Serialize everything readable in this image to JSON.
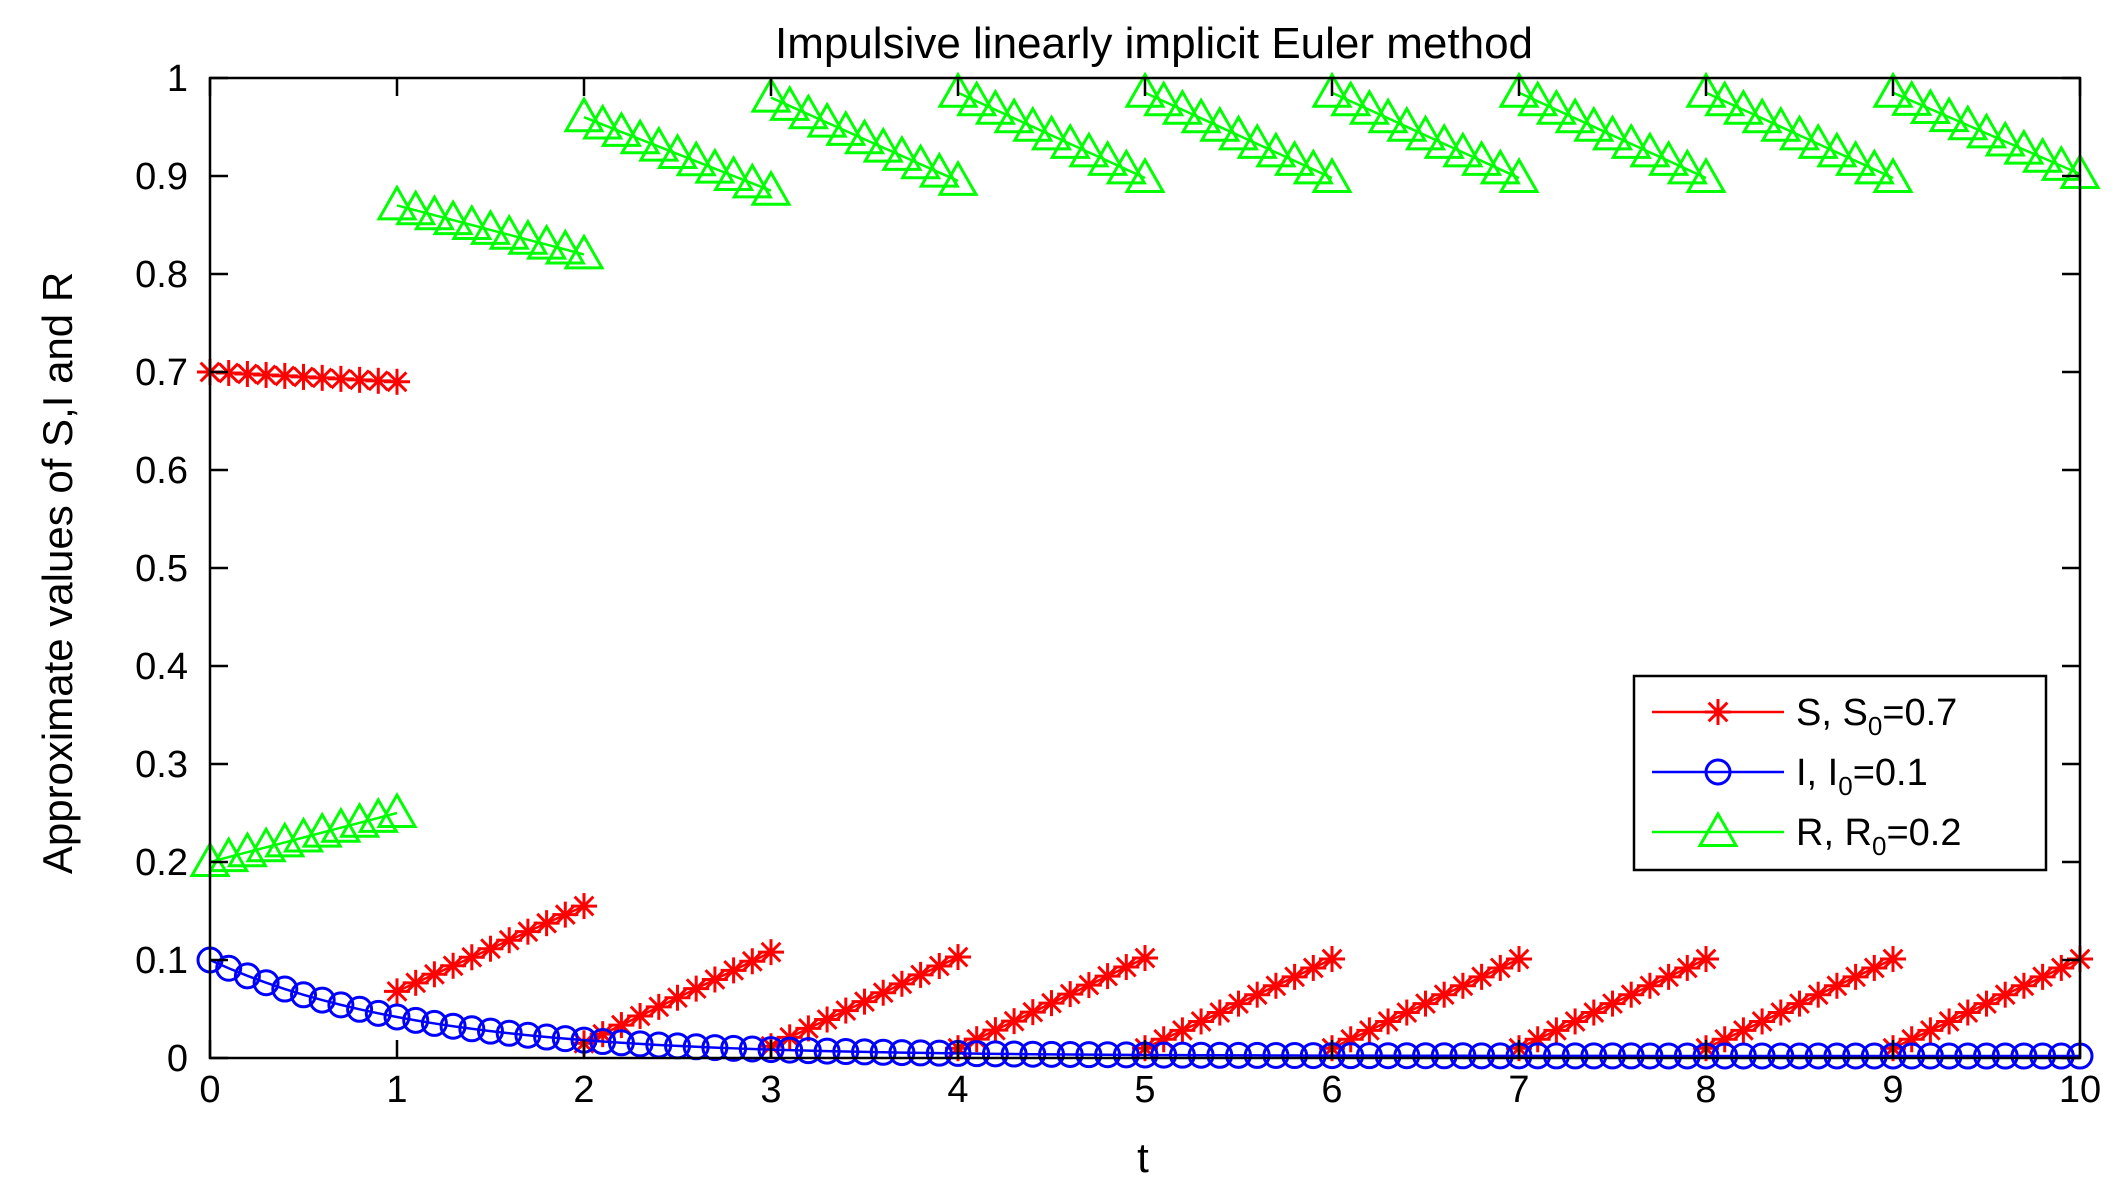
{
  "chart_data": {
    "type": "line",
    "title": "Impulsive linearly implicit Euler method",
    "xlabel": "t",
    "ylabel": "Approximate values of S,I and R",
    "xlim": [
      0,
      10
    ],
    "ylim": [
      0,
      1
    ],
    "xticks": [
      "0",
      "1",
      "2",
      "3",
      "4",
      "5",
      "6",
      "7",
      "8",
      "9",
      "10"
    ],
    "yticks": [
      "0",
      "0.1",
      "0.2",
      "0.3",
      "0.4",
      "0.5",
      "0.6",
      "0.7",
      "0.8",
      "0.9",
      "1"
    ],
    "grid": false,
    "legend_position": "right-middle",
    "series": [
      {
        "key": "S",
        "legend": {
          "name": "S, S",
          "sub": "0",
          "tail": "=0.7"
        },
        "color": "#ff0000",
        "marker": "asterisk",
        "segments": [
          {
            "t0": 0,
            "t1": 1,
            "start": 0.7,
            "end": 0.69
          },
          {
            "t0": 1,
            "t1": 2,
            "start": 0.068,
            "end": 0.155
          },
          {
            "t0": 2,
            "t1": 3,
            "start": 0.015,
            "end": 0.108
          },
          {
            "t0": 3,
            "t1": 4,
            "start": 0.012,
            "end": 0.103
          },
          {
            "t0": 4,
            "t1": 5,
            "start": 0.01,
            "end": 0.102
          },
          {
            "t0": 5,
            "t1": 6,
            "start": 0.01,
            "end": 0.101
          },
          {
            "t0": 6,
            "t1": 7,
            "start": 0.01,
            "end": 0.101
          },
          {
            "t0": 7,
            "t1": 8,
            "start": 0.01,
            "end": 0.101
          },
          {
            "t0": 8,
            "t1": 9,
            "start": 0.01,
            "end": 0.101
          },
          {
            "t0": 9,
            "t1": 10,
            "start": 0.01,
            "end": 0.101
          }
        ]
      },
      {
        "key": "I",
        "legend": {
          "name": "I,  I",
          "sub": "0",
          "tail": "=0.1"
        },
        "color": "#0000ff",
        "marker": "circle",
        "decay": {
          "t0": 0,
          "t1": 10,
          "start": 0.1,
          "floor": 0.002,
          "rate": 0.9
        }
      },
      {
        "key": "R",
        "legend": {
          "name": "R, R",
          "sub": "0",
          "tail": "=0.2"
        },
        "color": "#00ff00",
        "marker": "triangle",
        "segments": [
          {
            "t0": 0,
            "t1": 1,
            "start": 0.2,
            "end": 0.25
          },
          {
            "t0": 1,
            "t1": 2,
            "start": 0.87,
            "end": 0.82
          },
          {
            "t0": 2,
            "t1": 3,
            "start": 0.96,
            "end": 0.885
          },
          {
            "t0": 3,
            "t1": 4,
            "start": 0.98,
            "end": 0.895
          },
          {
            "t0": 4,
            "t1": 5,
            "start": 0.985,
            "end": 0.898
          },
          {
            "t0": 5,
            "t1": 6,
            "start": 0.985,
            "end": 0.898
          },
          {
            "t0": 6,
            "t1": 7,
            "start": 0.985,
            "end": 0.898
          },
          {
            "t0": 7,
            "t1": 8,
            "start": 0.985,
            "end": 0.898
          },
          {
            "t0": 8,
            "t1": 9,
            "start": 0.985,
            "end": 0.898
          },
          {
            "t0": 9,
            "t1": 10,
            "start": 0.985,
            "end": 0.902
          }
        ]
      }
    ]
  }
}
